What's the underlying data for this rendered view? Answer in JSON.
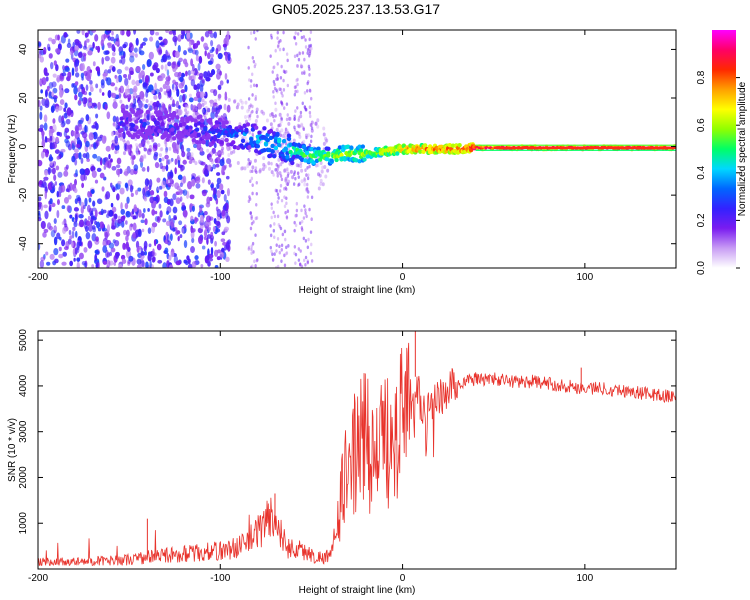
{
  "title": "GN05.2025.237.13.53.G17",
  "colors": {
    "snr_line": "#e8332c",
    "axis": "#000000",
    "background": "#ffffff",
    "spectrogram_dots": "#6f19e6",
    "spectrogram_core": "#ff2a1a"
  },
  "chart_data": [
    {
      "type": "heatmap",
      "name": "spectrogram",
      "xlabel": "Height of straight line (km)",
      "ylabel": "Frequency (Hz)",
      "xlim": [
        -200,
        150
      ],
      "ylim": [
        -50,
        48
      ],
      "xticks": [
        -200,
        -100,
        0,
        100
      ],
      "xtick_labels": [
        "-200",
        "-100",
        "0",
        "100"
      ],
      "yticks": [
        -40,
        -20,
        0,
        20,
        40
      ],
      "ytick_labels": [
        "-40",
        "-20",
        "0",
        "20",
        "40"
      ],
      "colorbar": {
        "label": "Normalized spectral amplitude",
        "range": [
          0.0,
          1.0
        ],
        "ticks": [
          0.0,
          0.2,
          0.4,
          0.6,
          0.8
        ],
        "tick_labels": [
          "0.0",
          "0.2",
          "0.4",
          "0.6",
          "0.8"
        ],
        "colormap": [
          "#ffffff",
          "#c89cf4",
          "#7a1cf0",
          "#3322ff",
          "#0066ff",
          "#00d8ff",
          "#00ff66",
          "#90ff00",
          "#ffff00",
          "#ffa000",
          "#ff2800",
          "#ff0066",
          "#ff00ff"
        ]
      },
      "ridge": {
        "x": [
          -155,
          -140,
          -120,
          -100,
          -80,
          -65,
          -50,
          -40,
          -30,
          -20,
          -10,
          0,
          10,
          20,
          30,
          40,
          50,
          60,
          80,
          100,
          120,
          150
        ],
        "freq": [
          10,
          9,
          8,
          6,
          3,
          0,
          -4,
          -4,
          -3,
          -3,
          -2,
          -1,
          -1,
          -1,
          -1,
          -0.5,
          -0.5,
          -0.5,
          -0.5,
          -0.5,
          -0.5,
          -0.5
        ],
        "amplitude": [
          0.25,
          0.25,
          0.25,
          0.3,
          0.4,
          0.45,
          0.55,
          0.55,
          0.6,
          0.6,
          0.7,
          0.75,
          0.8,
          0.8,
          0.85,
          0.9,
          0.9,
          0.95,
          0.95,
          0.95,
          0.95,
          0.95
        ]
      }
    },
    {
      "type": "line",
      "name": "snr",
      "xlabel": "Height of straight line (km)",
      "ylabel": "SNR (10 * v/v)",
      "xlim": [
        -200,
        150
      ],
      "ylim": [
        0,
        5200
      ],
      "xticks": [
        -200,
        -100,
        0,
        100
      ],
      "xtick_labels": [
        "-200",
        "-100",
        "0",
        "100"
      ],
      "yticks": [
        1000,
        2000,
        3000,
        4000,
        5000
      ],
      "ytick_labels": [
        "1000",
        "2000",
        "3000",
        "4000",
        "5000"
      ],
      "series": [
        {
          "name": "SNR",
          "x": [
            -200,
            -180,
            -160,
            -150,
            -140,
            -130,
            -120,
            -110,
            -100,
            -92,
            -85,
            -80,
            -75,
            -72,
            -68,
            -64,
            -60,
            -55,
            -50,
            -45,
            -40,
            -38,
            -35,
            -32,
            -30,
            -27,
            -25,
            -22,
            -20,
            -17,
            -15,
            -12,
            -10,
            -8,
            -6,
            -5,
            -3,
            0,
            3,
            5,
            7,
            9,
            12,
            15,
            20,
            25,
            30,
            35,
            40,
            50,
            60,
            70,
            80,
            90,
            100,
            110,
            120,
            130,
            140,
            150
          ],
          "y": [
            150,
            150,
            180,
            200,
            260,
            300,
            330,
            360,
            400,
            460,
            580,
            780,
            1050,
            1150,
            900,
            500,
            450,
            400,
            300,
            250,
            300,
            500,
            1200,
            1900,
            2200,
            2450,
            2600,
            2800,
            3000,
            2500,
            2400,
            2600,
            2800,
            2900,
            3000,
            3100,
            3300,
            3400,
            3200,
            3500,
            4200,
            3800,
            3300,
            3500,
            3700,
            3900,
            4050,
            4100,
            4150,
            4150,
            4100,
            4100,
            4050,
            4000,
            3950,
            3950,
            3900,
            3850,
            3800,
            3750
          ]
        }
      ]
    }
  ]
}
